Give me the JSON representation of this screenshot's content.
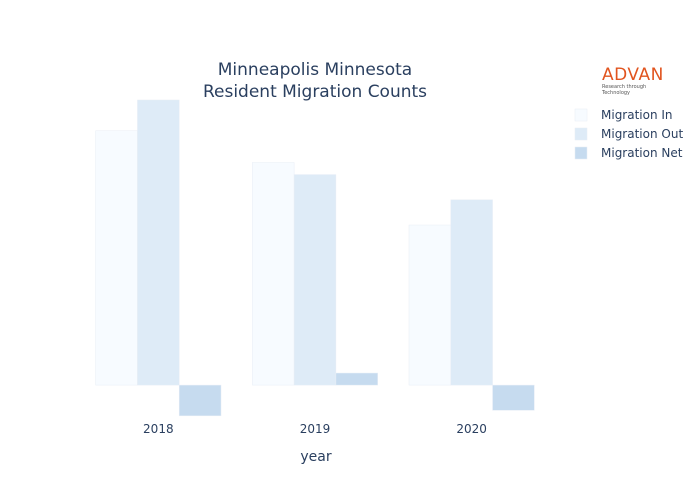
{
  "chart_data": {
    "type": "bar",
    "title": "Minneapolis Minnesota",
    "subtitle": "Resident Migration Counts",
    "xlabel": "year",
    "ylabel": "",
    "categories": [
      "2018",
      "2019",
      "2020"
    ],
    "series": [
      {
        "name": "Migration In",
        "values": [
          23200,
          20300,
          14600
        ],
        "color": "#f7fbff"
      },
      {
        "name": "Migration Out",
        "values": [
          26000,
          19200,
          16900
        ],
        "color": "#deebf7"
      },
      {
        "name": "Migration Net",
        "values": [
          -2800,
          1100,
          -2300
        ],
        "color": "#c6dbef"
      }
    ],
    "ylim": [
      -3000,
      26000
    ],
    "grid": false,
    "show_y_ticks": false,
    "legend_position": "top-right"
  },
  "logo": {
    "text": "ADVAN",
    "tagline": "Research through Technology"
  }
}
